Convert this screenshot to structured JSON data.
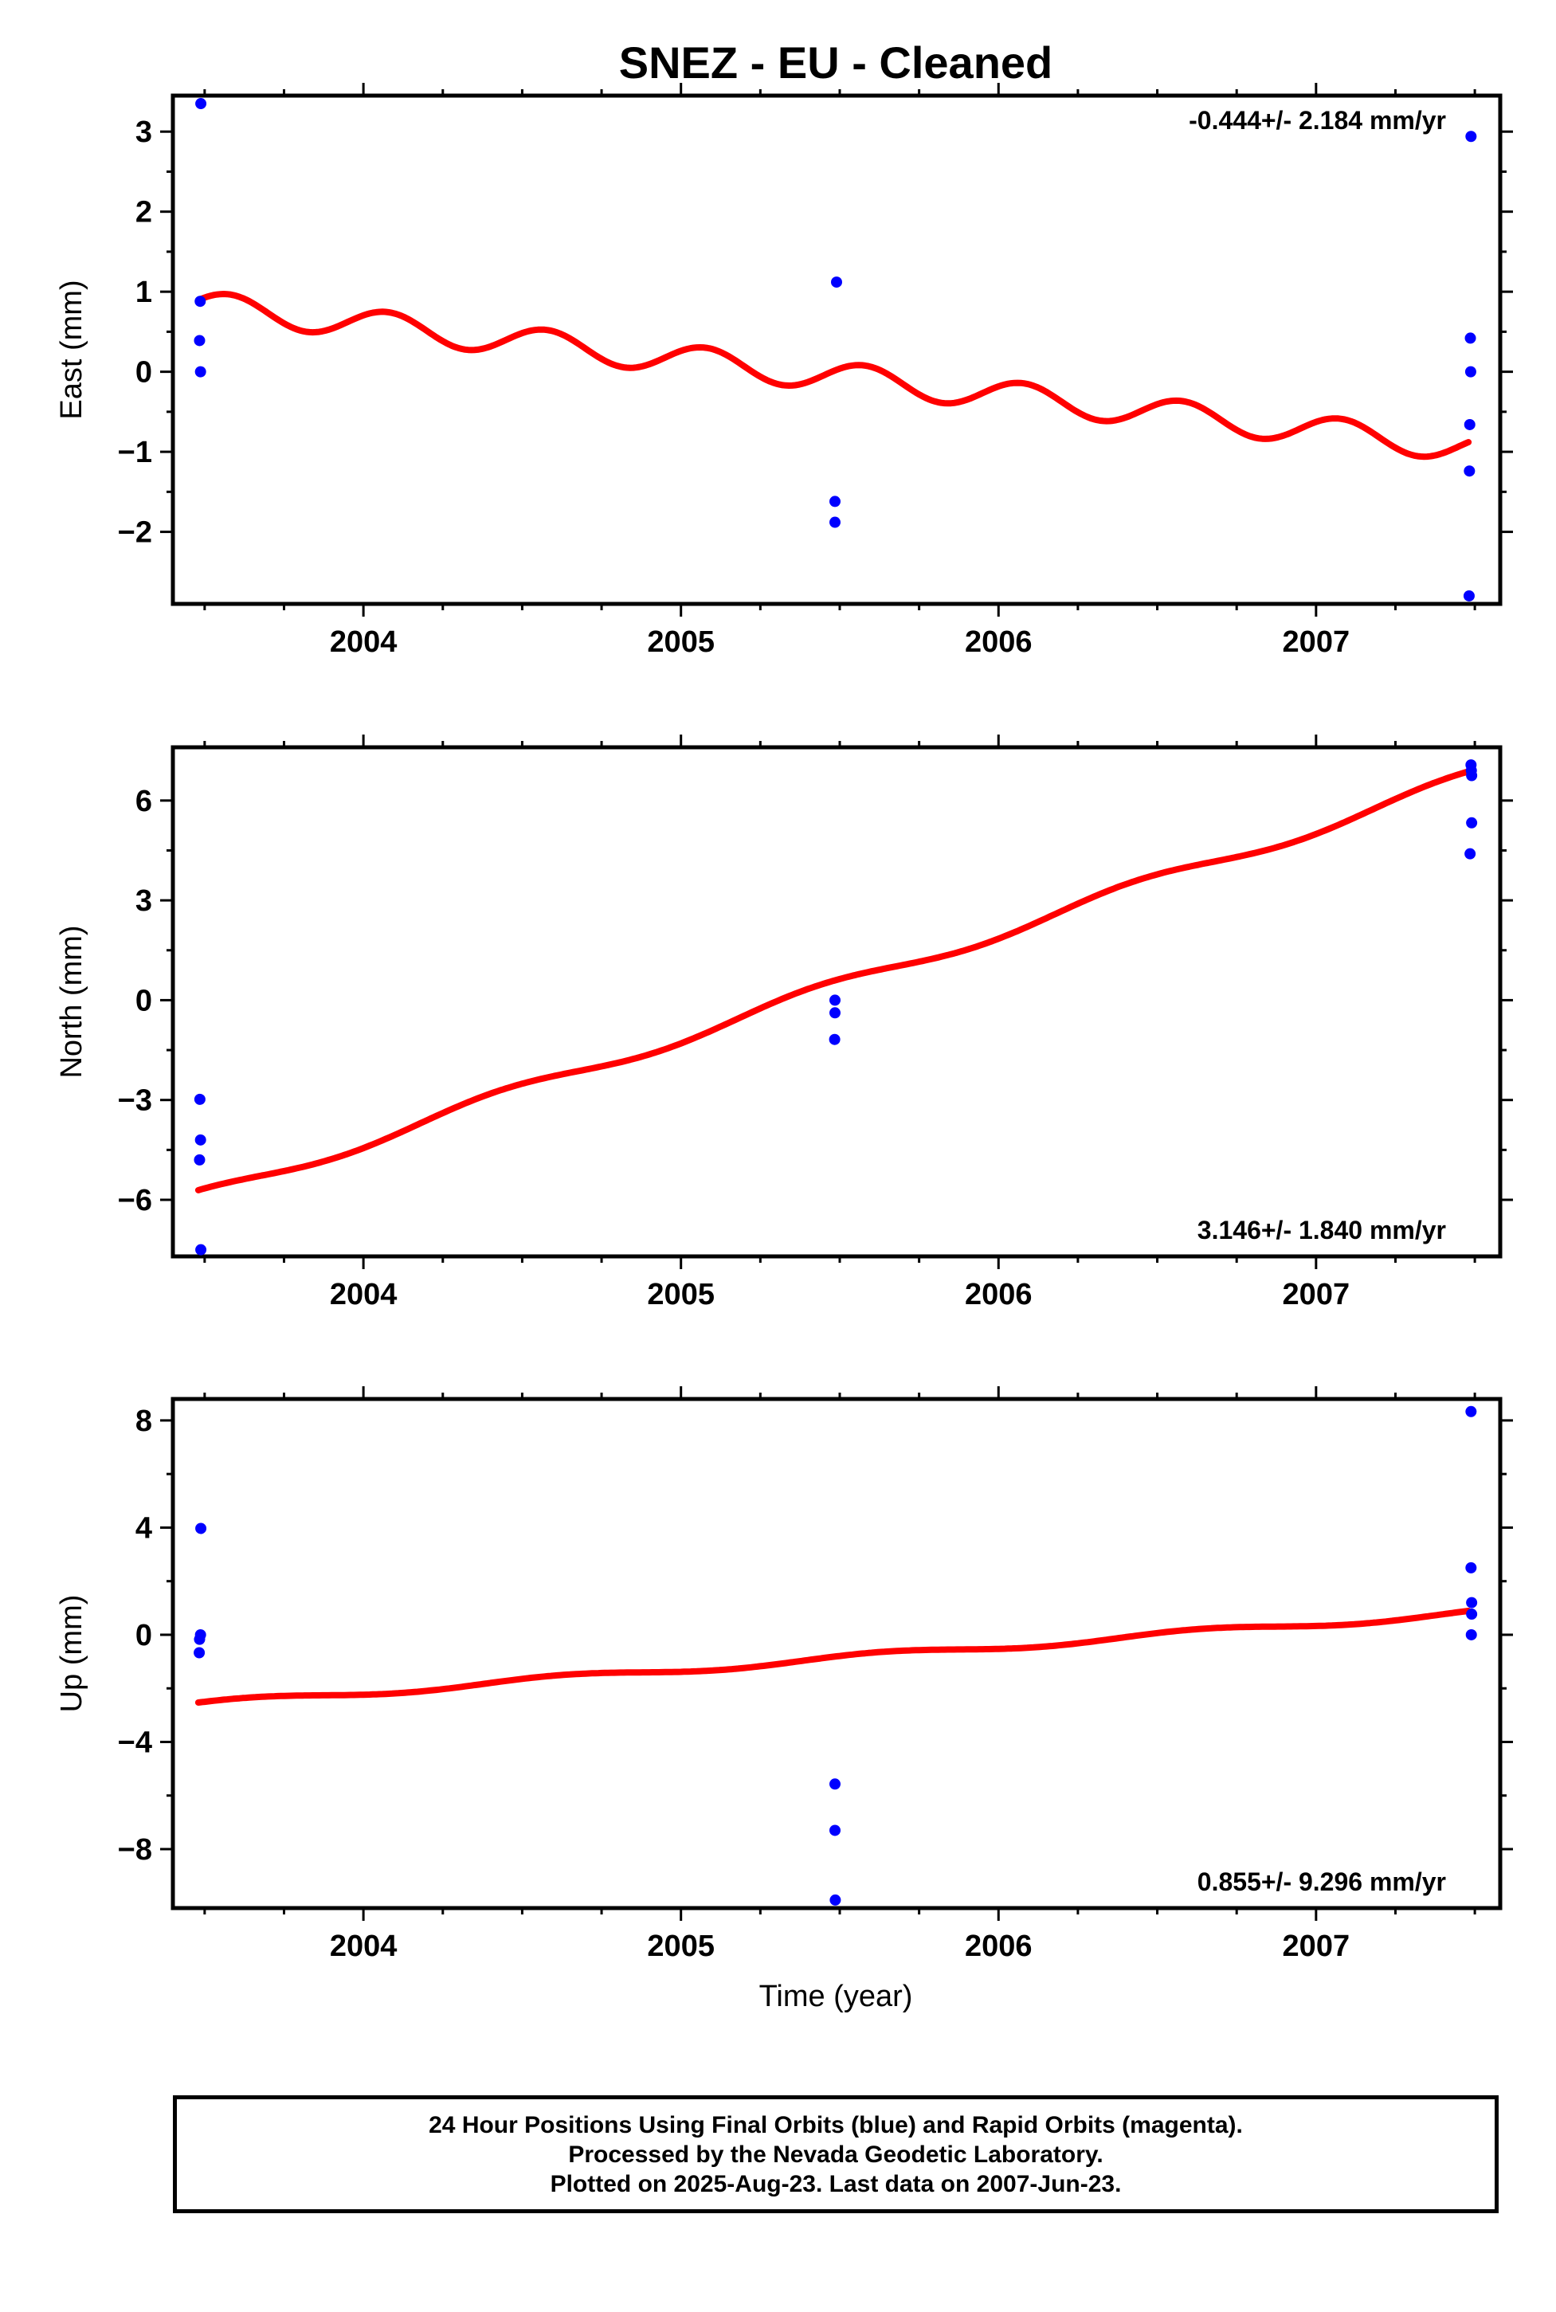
{
  "chart_data": {
    "type": "scatter",
    "title": "SNEZ  - EU - Cleaned",
    "xlabel": "Time (year)",
    "xlim": [
      2003.4,
      2007.58
    ],
    "x_ticks": [
      "2004",
      "2005",
      "2006",
      "2007"
    ],
    "x_tick_values": [
      2004,
      2005,
      2006,
      2007
    ],
    "colors": {
      "observations": "#0000ff",
      "model": "#ff0000"
    },
    "panels": [
      {
        "id": "east",
        "ylabel": "East (mm)",
        "ylim": [
          -2.9,
          3.45
        ],
        "y_ticks": [
          "3",
          "2",
          "1",
          "0",
          "−1",
          "−2"
        ],
        "y_tick_values": [
          3,
          2,
          1,
          0,
          -1,
          -2
        ],
        "rate_label": "-0.444+/- 2.184 mm/yr",
        "rate_position": "top-right",
        "observations": [
          {
            "x": 2003.488,
            "y": 3.35
          },
          {
            "x": 2003.486,
            "y": 0.88
          },
          {
            "x": 2003.484,
            "y": 0.39
          },
          {
            "x": 2003.487,
            "y": 0.0
          },
          {
            "x": 2005.49,
            "y": 1.12
          },
          {
            "x": 2005.485,
            "y": -1.62
          },
          {
            "x": 2005.485,
            "y": -1.88
          },
          {
            "x": 2007.488,
            "y": 2.94
          },
          {
            "x": 2007.486,
            "y": 0.42
          },
          {
            "x": 2007.487,
            "y": 0.0
          },
          {
            "x": 2007.484,
            "y": -0.66
          },
          {
            "x": 2007.483,
            "y": -1.24
          },
          {
            "x": 2007.482,
            "y": -2.8
          }
        ],
        "model": {
          "intercept": 0.83,
          "slope": -0.444,
          "t0": 2003.48,
          "amplitude": 0.18,
          "period": 0.5,
          "phase": 0.06,
          "t_start": 2003.48,
          "t_end": 2007.48
        }
      },
      {
        "id": "north",
        "ylabel": "North (mm)",
        "ylim": [
          -7.7,
          7.6
        ],
        "y_ticks": [
          "6",
          "3",
          "0",
          "−3",
          "−6"
        ],
        "y_tick_values": [
          6,
          3,
          0,
          -3,
          -6
        ],
        "rate_label": "3.146+/- 1.840 mm/yr",
        "rate_position": "bottom-right",
        "observations": [
          {
            "x": 2003.485,
            "y": -2.98
          },
          {
            "x": 2003.487,
            "y": -4.2
          },
          {
            "x": 2003.484,
            "y": -4.8
          },
          {
            "x": 2003.488,
            "y": -7.5
          },
          {
            "x": 2005.485,
            "y": 0.0
          },
          {
            "x": 2005.485,
            "y": -0.38
          },
          {
            "x": 2005.484,
            "y": -1.18
          },
          {
            "x": 2007.488,
            "y": 7.07
          },
          {
            "x": 2007.489,
            "y": 6.9
          },
          {
            "x": 2007.49,
            "y": 6.75
          },
          {
            "x": 2007.49,
            "y": 5.33
          },
          {
            "x": 2007.485,
            "y": 4.4
          }
        ],
        "model": {
          "intercept": -5.9,
          "slope": 3.146,
          "t0": 2003.48,
          "amplitude": 0.2,
          "period": 1.0,
          "phase": 0.3,
          "t_start": 2003.48,
          "t_end": 2007.48
        }
      },
      {
        "id": "up",
        "ylabel": "Up (mm)",
        "ylim": [
          -10.2,
          8.8
        ],
        "y_ticks": [
          "8",
          "4",
          "0",
          "−4",
          "−8"
        ],
        "y_tick_values": [
          8,
          4,
          0,
          -4,
          -8
        ],
        "rate_label": "0.855+/- 9.296 mm/yr",
        "rate_position": "bottom-right",
        "observations": [
          {
            "x": 2003.488,
            "y": 3.97
          },
          {
            "x": 2003.487,
            "y": 0.0
          },
          {
            "x": 2003.484,
            "y": -0.17
          },
          {
            "x": 2003.483,
            "y": -0.67
          },
          {
            "x": 2005.485,
            "y": -5.57
          },
          {
            "x": 2005.485,
            "y": -7.3
          },
          {
            "x": 2005.486,
            "y": -9.9
          },
          {
            "x": 2007.488,
            "y": 8.33
          },
          {
            "x": 2007.488,
            "y": 2.5
          },
          {
            "x": 2007.49,
            "y": 1.2
          },
          {
            "x": 2007.49,
            "y": 0.77
          },
          {
            "x": 2007.489,
            "y": 0.0
          }
        ],
        "model": {
          "intercept": -2.6,
          "slope": 0.855,
          "t0": 2003.48,
          "amplitude": 0.12,
          "period": 1.0,
          "phase": 0.1,
          "t_start": 2003.48,
          "t_end": 2007.48
        }
      }
    ]
  },
  "footer": {
    "lines": [
      "24 Hour Positions Using Final Orbits (blue) and Rapid Orbits (magenta).",
      "Processed by the Nevada Geodetic Laboratory.",
      "Plotted on 2025-Aug-23. Last data on 2007-Jun-23."
    ]
  }
}
